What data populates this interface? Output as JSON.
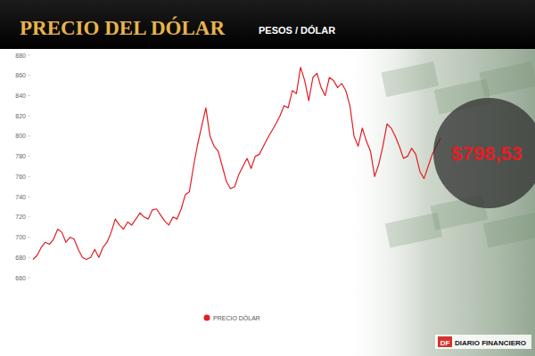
{
  "chart_data": {
    "type": "line",
    "title": "PRECIO DEL DÓLAR",
    "subtitle": "PESOS / DÓLAR",
    "annotation": "$798,53",
    "logo": "DF",
    "source": "DIARIO FINANCIERO",
    "categories": [
      null,
      null,
      null,
      null,
      null,
      null,
      null,
      null,
      null,
      null,
      null,
      null,
      null,
      null,
      null,
      null,
      null,
      null,
      null,
      null,
      null,
      null,
      null,
      null,
      null,
      null,
      null,
      null,
      null,
      null,
      null,
      null,
      null,
      null,
      null,
      null,
      null,
      null,
      null,
      null,
      null,
      null,
      null,
      null,
      null,
      null,
      null,
      null,
      null,
      null,
      null,
      null,
      null,
      null,
      null,
      null,
      null,
      null,
      null,
      null,
      null,
      null,
      null,
      null,
      null,
      null,
      null,
      null,
      null,
      null,
      null,
      null,
      null,
      null,
      null,
      null,
      null,
      null,
      null,
      null,
      null,
      null,
      null,
      null,
      null,
      null,
      null,
      null,
      null,
      null,
      null,
      null,
      null,
      null,
      null,
      null,
      null,
      null,
      null,
      null
    ],
    "series": [
      {
        "name": "PRECIO DÓLAR",
        "color": "#e31e24",
        "values": [
          678,
          682,
          690,
          695,
          693,
          698,
          708,
          705,
          695,
          700,
          698,
          688,
          680,
          678,
          680,
          688,
          680,
          690,
          695,
          705,
          718,
          712,
          708,
          715,
          712,
          718,
          724,
          720,
          718,
          727,
          728,
          722,
          716,
          712,
          720,
          718,
          728,
          742,
          745,
          770,
          792,
          810,
          828,
          800,
          790,
          785,
          770,
          755,
          748,
          750,
          762,
          770,
          778,
          768,
          780,
          782,
          790,
          798,
          805,
          812,
          820,
          830,
          828,
          845,
          842,
          868,
          855,
          835,
          858,
          862,
          848,
          840,
          858,
          855,
          848,
          852,
          845,
          830,
          800,
          790,
          808,
          795,
          785,
          760,
          772,
          790,
          812,
          808,
          800,
          790,
          778,
          780,
          788,
          782,
          765,
          758,
          770,
          782,
          790,
          798
        ]
      }
    ],
    "ylim": [
      660,
      880
    ],
    "yticks": [
      660,
      680,
      700,
      720,
      740,
      760,
      780,
      800,
      820,
      840,
      860,
      880
    ],
    "grid": false,
    "tick_labels": "y",
    "legend": "bottom"
  }
}
